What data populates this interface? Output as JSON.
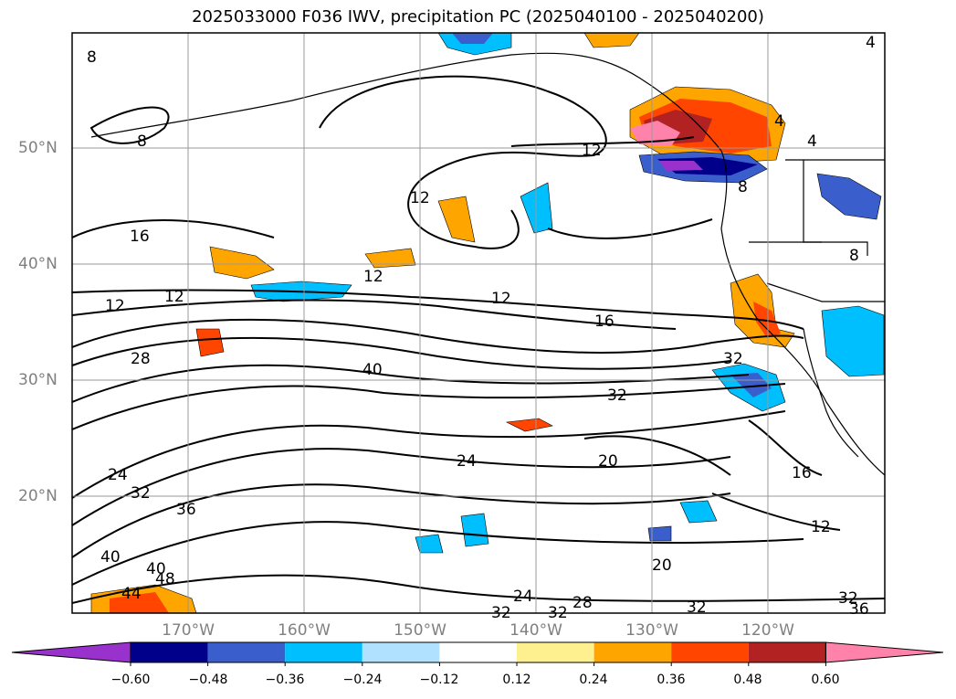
{
  "title": "2025033000 F036 IWV, precipitation PC (2025040100 - 2025040200)",
  "lat_labels": [
    "50°N",
    "40°N",
    "30°N",
    "20°N"
  ],
  "lon_labels": [
    "170°W",
    "160°W",
    "150°W",
    "140°W",
    "130°W",
    "120°W"
  ],
  "colorbar": {
    "colors": [
      "#9932cc",
      "#00008b",
      "#3a5fcd",
      "#00bfff",
      "#b0e2ff",
      "#ffffff",
      "#fff08f",
      "#ffa500",
      "#ff4500",
      "#b22222",
      "#ff82ab"
    ],
    "tick_labels": [
      "−0.60",
      "−0.48",
      "−0.36",
      "−0.24",
      "−0.12",
      "0.12",
      "0.24",
      "0.36",
      "0.48",
      "0.60"
    ]
  },
  "contour_labels": [
    {
      "text": "8"
    },
    {
      "text": "4"
    },
    {
      "text": "4"
    },
    {
      "text": "8"
    },
    {
      "text": "4"
    },
    {
      "text": "8"
    },
    {
      "text": "12"
    },
    {
      "text": "12"
    },
    {
      "text": "16"
    },
    {
      "text": "12"
    },
    {
      "text": "12"
    },
    {
      "text": "12"
    },
    {
      "text": "12"
    },
    {
      "text": "16"
    },
    {
      "text": "28"
    },
    {
      "text": "40"
    },
    {
      "text": "32"
    },
    {
      "text": "32"
    },
    {
      "text": "24"
    },
    {
      "text": "20"
    },
    {
      "text": "16"
    },
    {
      "text": "24"
    },
    {
      "text": "32"
    },
    {
      "text": "36"
    },
    {
      "text": "40"
    },
    {
      "text": "40"
    },
    {
      "text": "44"
    },
    {
      "text": "48"
    },
    {
      "text": "12"
    },
    {
      "text": "20"
    },
    {
      "text": "24"
    },
    {
      "text": "28"
    },
    {
      "text": "32"
    },
    {
      "text": "32"
    },
    {
      "text": "32"
    },
    {
      "text": "32"
    },
    {
      "text": "36"
    },
    {
      "text": "8"
    }
  ]
}
